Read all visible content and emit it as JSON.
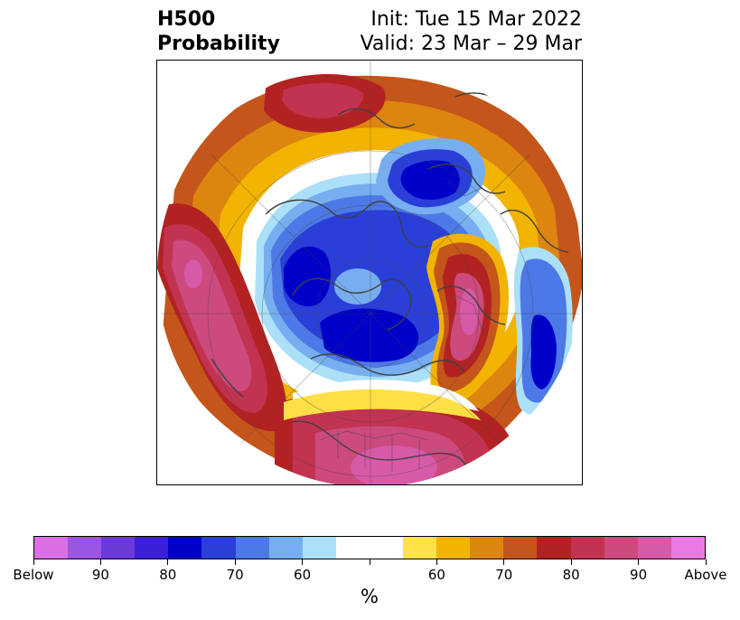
{
  "title": {
    "left_line1": "H500",
    "left_line2": "Probability",
    "right_line1": "Init: Tue 15 Mar 2022",
    "right_line2": "Valid: 23 Mar – 29 Mar"
  },
  "map": {
    "projection": "north-polar-stereographic",
    "features": [
      "coastlines",
      "country-borders",
      "us-state-borders",
      "latitude-longitude-grid"
    ],
    "colors": {
      "coastline": "#404040",
      "below_strong": "#0000c8",
      "below_medium": "#2a3fd8",
      "below_light": "#4d79e6",
      "below_faint": "#76aef0",
      "neutral": "#ffffff",
      "above_faint": "#ffdf46",
      "above_light": "#f2b400",
      "above_medium": "#dd860f",
      "above_strong": "#c4561b",
      "above_vstrong": "#b22222",
      "above_max": "#d65aa8"
    }
  },
  "colorbar": {
    "colors": [
      "#da6ee4",
      "#9a55e2",
      "#6a3ad8",
      "#3a20d6",
      "#0000c8",
      "#2a3fd8",
      "#4d79e6",
      "#76aef0",
      "#ace0f8",
      "#ffffff",
      "#ffffff",
      "#ffe14a",
      "#f2b400",
      "#dd860f",
      "#c4561b",
      "#b22222",
      "#c23352",
      "#cc4a7e",
      "#d65aa8",
      "#e87ae0"
    ],
    "tick_labels": [
      "Below",
      "90",
      "80",
      "70",
      "60",
      "",
      "60",
      "70",
      "80",
      "90",
      "Above"
    ],
    "unit_label": "%"
  }
}
